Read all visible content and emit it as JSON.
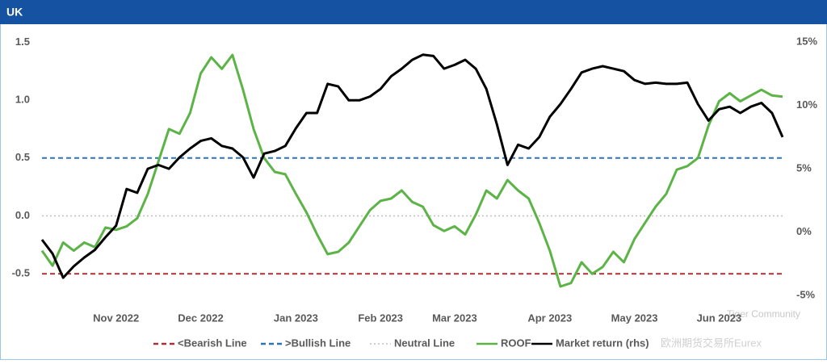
{
  "chart_data": {
    "type": "line",
    "title": "UK",
    "categories": [
      null,
      null,
      null,
      null,
      null,
      null,
      null,
      "Nov 2022",
      null,
      null,
      null,
      null,
      null,
      null,
      null,
      "Dec 2022",
      null,
      null,
      null,
      null,
      null,
      null,
      null,
      null,
      "Jan 2023",
      null,
      null,
      null,
      null,
      null,
      null,
      null,
      "Feb 2023",
      null,
      null,
      null,
      null,
      null,
      null,
      "Mar 2023",
      null,
      null,
      null,
      null,
      null,
      null,
      null,
      null,
      "Apr 2023",
      null,
      null,
      null,
      null,
      null,
      null,
      null,
      "May 2023",
      null,
      null,
      null,
      null,
      null,
      null,
      null,
      "Jun 2023",
      null,
      null,
      null,
      null,
      null,
      null
    ],
    "series": [
      {
        "name": "ROOF",
        "color": "#5cb346",
        "axis": "y",
        "values": [
          -0.3,
          -0.43,
          -0.23,
          -0.3,
          -0.23,
          -0.27,
          -0.1,
          -0.12,
          -0.09,
          -0.02,
          0.19,
          0.47,
          0.75,
          0.71,
          0.89,
          1.23,
          1.37,
          1.27,
          1.39,
          1.09,
          0.75,
          0.5,
          0.38,
          0.36,
          0.19,
          0.03,
          -0.16,
          -0.33,
          -0.31,
          -0.23,
          -0.09,
          0.05,
          0.13,
          0.15,
          0.22,
          0.12,
          0.08,
          -0.08,
          -0.13,
          -0.09,
          -0.16,
          0.01,
          0.22,
          0.15,
          0.31,
          0.22,
          0.15,
          -0.06,
          -0.3,
          -0.61,
          -0.58,
          -0.4,
          -0.5,
          -0.44,
          -0.31,
          -0.4,
          -0.2,
          -0.06,
          0.08,
          0.19,
          0.4,
          0.43,
          0.5,
          0.78,
          0.99,
          1.06,
          0.99,
          1.04,
          1.09,
          1.04,
          1.03
        ]
      },
      {
        "name": "Market return (rhs)",
        "color": "#000000",
        "axis": "y2",
        "values": [
          -0.6,
          -1.7,
          -3.6,
          -2.7,
          -2.0,
          -1.4,
          -0.4,
          0.5,
          3.4,
          3.1,
          5.0,
          5.3,
          5.0,
          5.9,
          6.6,
          7.2,
          7.4,
          6.8,
          6.6,
          5.9,
          4.3,
          6.2,
          6.4,
          6.8,
          8.2,
          9.4,
          9.4,
          11.7,
          11.5,
          10.4,
          10.4,
          10.7,
          11.3,
          12.3,
          12.9,
          13.6,
          14.0,
          13.9,
          12.9,
          13.2,
          13.6,
          12.9,
          11.3,
          8.5,
          5.3,
          6.9,
          6.6,
          7.5,
          9.1,
          10.1,
          11.3,
          12.6,
          12.9,
          13.1,
          12.9,
          12.7,
          12.0,
          11.7,
          11.8,
          11.7,
          11.7,
          11.8,
          10.1,
          8.8,
          9.7,
          9.9,
          9.4,
          9.9,
          10.2,
          9.4,
          7.5
        ]
      }
    ],
    "reference_lines": [
      {
        "name": "<Bearish Line",
        "value": -0.5,
        "color": "#a93232",
        "style": "dashed"
      },
      {
        "name": ">Bullish Line",
        "value": 0.5,
        "color": "#2e75b6",
        "style": "dashed"
      },
      {
        "name": "Neutral Line",
        "value": 0,
        "color": "#bfbfbf",
        "style": "dotted"
      }
    ],
    "legend_order": [
      "<Bearish Line",
      ">Bullish Line",
      "Neutral Line",
      "ROOF",
      "Market return (rhs)"
    ],
    "ylim": [
      -0.77,
      1.6
    ],
    "yticks": [
      1.5,
      {
        "value": 1,
        "label": "1.0"
      },
      0.5,
      {
        "value": 0,
        "label": "0.0"
      },
      -0.5
    ],
    "y2lim": [
      -5.76,
      15.9
    ],
    "y2ticks": [
      {
        "value": 15,
        "label": "15%"
      },
      {
        "value": 10,
        "label": "10%"
      },
      {
        "value": 5,
        "label": "5%"
      },
      {
        "value": 0,
        "label": "0%"
      },
      {
        "value": -5,
        "label": "-5%"
      }
    ],
    "watermarks": [
      "Tiger Community",
      "欧洲期货交易所Eurex"
    ]
  }
}
